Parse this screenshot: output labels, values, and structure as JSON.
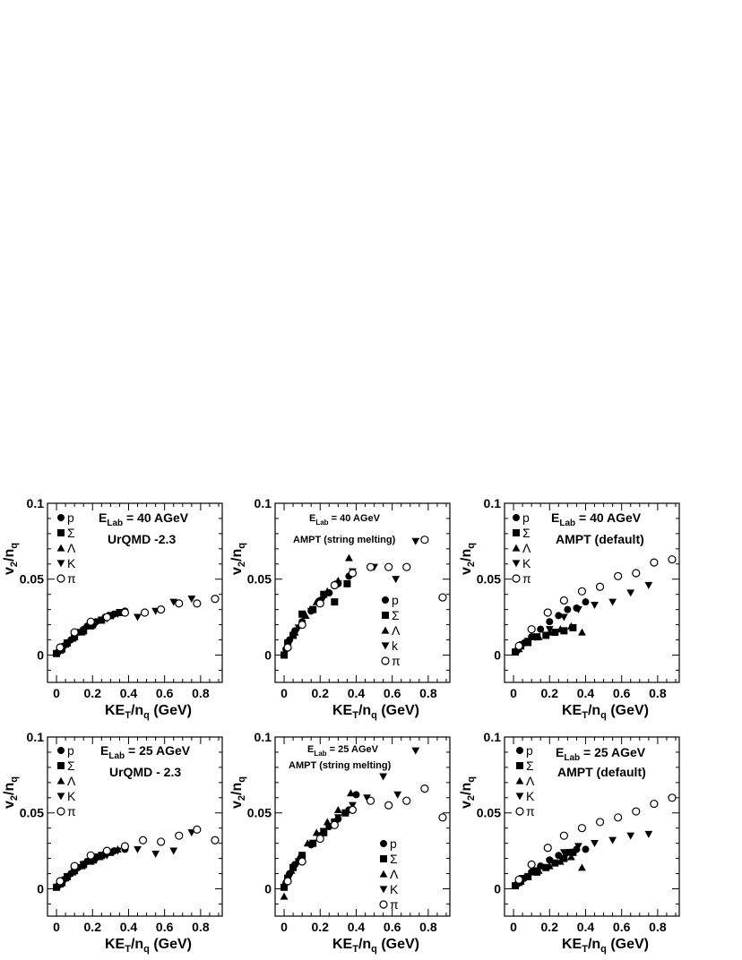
{
  "chart_data": [
    {
      "type": "scatter",
      "model": "UrQMD -2.3",
      "energy_label": "E",
      "energy_sub": "Lab",
      "energy_value": " = 40 AGeV",
      "xlabel": "KE_T/n_q (GeV)",
      "ylabel": "v_2/n_q",
      "xlim": [
        -0.05,
        0.92
      ],
      "ylim": [
        -0.018,
        0.1
      ],
      "xticks": [
        "0",
        "0.2",
        "0.4",
        "0.6",
        "0.8"
      ],
      "yticks": [
        "0",
        "0.05",
        "0.1"
      ],
      "legend": [
        "p",
        "Σ",
        "Λ",
        "K",
        "π"
      ],
      "series": [
        {
          "name": "p",
          "marker": "circle",
          "x": [
            0.01,
            0.04,
            0.08,
            0.12,
            0.17,
            0.22,
            0.27,
            0.32,
            0.38
          ],
          "y": [
            0.002,
            0.006,
            0.01,
            0.015,
            0.019,
            0.022,
            0.025,
            0.027,
            0.029
          ]
        },
        {
          "name": "Σ",
          "marker": "square",
          "x": [
            0.0,
            0.03,
            0.06,
            0.1,
            0.15,
            0.2,
            0.25,
            0.3,
            0.35
          ],
          "y": [
            0.001,
            0.004,
            0.008,
            0.012,
            0.016,
            0.02,
            0.023,
            0.026,
            0.028
          ]
        },
        {
          "name": "Λ",
          "marker": "triangle-up",
          "x": [
            0.02,
            0.05,
            0.09,
            0.14,
            0.19,
            0.24,
            0.29,
            0.34
          ],
          "y": [
            0.003,
            0.007,
            0.011,
            0.015,
            0.019,
            0.023,
            0.026,
            0.028
          ]
        },
        {
          "name": "K",
          "marker": "triangle-down",
          "x": [
            0.02,
            0.06,
            0.1,
            0.16,
            0.22,
            0.28,
            0.34,
            0.45,
            0.55,
            0.65,
            0.75
          ],
          "y": [
            0.003,
            0.008,
            0.012,
            0.017,
            0.021,
            0.024,
            0.027,
            0.025,
            0.029,
            0.035,
            0.037
          ]
        },
        {
          "name": "π",
          "marker": "circle-open",
          "x": [
            0.02,
            0.1,
            0.19,
            0.28,
            0.38,
            0.49,
            0.58,
            0.68,
            0.78,
            0.88
          ],
          "y": [
            0.005,
            0.015,
            0.022,
            0.025,
            0.028,
            0.028,
            0.03,
            0.034,
            0.034,
            0.037
          ]
        }
      ]
    },
    {
      "type": "scatter",
      "model": "AMPT (string melting)",
      "energy_label": "E",
      "energy_sub": "Lab",
      "energy_value": " = 40 AGeV",
      "xlabel": "KE_T/n_q (GeV)",
      "ylabel": "v_2/n_q",
      "xlim": [
        -0.05,
        0.92
      ],
      "ylim": [
        -0.018,
        0.1
      ],
      "xticks": [
        "0",
        "0.2",
        "0.4",
        "0.6",
        "0.8"
      ],
      "yticks": [
        "0",
        "0.05",
        "0.1"
      ],
      "legend": [
        "p",
        "Σ",
        "Λ",
        "k",
        "π"
      ],
      "series": [
        {
          "name": "p",
          "marker": "circle",
          "x": [
            0.01,
            0.03,
            0.06,
            0.1,
            0.15,
            0.2,
            0.25,
            0.3,
            0.36
          ],
          "y": [
            0.004,
            0.01,
            0.016,
            0.022,
            0.029,
            0.036,
            0.041,
            0.047,
            0.052
          ]
        },
        {
          "name": "Σ",
          "marker": "square",
          "x": [
            0.0,
            0.02,
            0.05,
            0.1,
            0.16,
            0.22,
            0.28,
            0.35
          ],
          "y": [
            0.0,
            0.008,
            0.013,
            0.027,
            0.03,
            0.04,
            0.035,
            0.047
          ]
        },
        {
          "name": "Λ",
          "marker": "triangle-up",
          "x": [
            0.02,
            0.06,
            0.12,
            0.18,
            0.24,
            0.3,
            0.36
          ],
          "y": [
            0.006,
            0.015,
            0.026,
            0.035,
            0.042,
            0.049,
            0.064
          ]
        },
        {
          "name": "k",
          "marker": "triangle-down",
          "x": [
            0.03,
            0.08,
            0.15,
            0.22,
            0.3,
            0.38,
            0.5,
            0.62,
            0.73
          ],
          "y": [
            0.008,
            0.018,
            0.029,
            0.038,
            0.047,
            0.055,
            0.058,
            0.05,
            0.075
          ]
        },
        {
          "name": "π",
          "marker": "circle-open",
          "x": [
            0.02,
            0.1,
            0.2,
            0.28,
            0.38,
            0.48,
            0.58,
            0.68,
            0.78,
            0.88
          ],
          "y": [
            0.005,
            0.02,
            0.034,
            0.046,
            0.054,
            0.058,
            0.058,
            0.058,
            0.076,
            0.038
          ]
        }
      ]
    },
    {
      "type": "scatter",
      "model": "AMPT (default)",
      "energy_label": "E",
      "energy_sub": "Lab",
      "energy_value": " = 40 AGeV",
      "xlabel": "KE_T/n_q (GeV)",
      "ylabel": "v_2/n_q",
      "xlim": [
        -0.05,
        0.92
      ],
      "ylim": [
        -0.018,
        0.1
      ],
      "xticks": [
        "0",
        "0.2",
        "0.4",
        "0.6",
        "0.8"
      ],
      "yticks": [
        "0",
        "0.05",
        "0.1"
      ],
      "legend": [
        "p",
        "Σ",
        "Λ",
        "K",
        "π"
      ],
      "series": [
        {
          "name": "p",
          "marker": "circle",
          "x": [
            0.02,
            0.06,
            0.1,
            0.15,
            0.2,
            0.25,
            0.3,
            0.35,
            0.4
          ],
          "y": [
            0.003,
            0.008,
            0.012,
            0.017,
            0.022,
            0.026,
            0.03,
            0.031,
            0.035
          ]
        },
        {
          "name": "Σ",
          "marker": "square",
          "x": [
            0.01,
            0.04,
            0.08,
            0.13,
            0.18,
            0.23,
            0.28,
            0.33
          ],
          "y": [
            0.002,
            0.006,
            0.009,
            0.012,
            0.013,
            0.015,
            0.016,
            0.018
          ]
        },
        {
          "name": "Λ",
          "marker": "triangle-up",
          "x": [
            0.03,
            0.08,
            0.14,
            0.2,
            0.26,
            0.32,
            0.38
          ],
          "y": [
            0.004,
            0.008,
            0.012,
            0.015,
            0.017,
            0.019,
            0.015
          ]
        },
        {
          "name": "K",
          "marker": "triangle-down",
          "x": [
            0.05,
            0.12,
            0.2,
            0.28,
            0.36,
            0.45,
            0.55,
            0.65,
            0.75
          ],
          "y": [
            0.007,
            0.012,
            0.017,
            0.025,
            0.03,
            0.033,
            0.035,
            0.041,
            0.046
          ]
        },
        {
          "name": "π",
          "marker": "circle-open",
          "x": [
            0.03,
            0.1,
            0.19,
            0.28,
            0.38,
            0.48,
            0.58,
            0.68,
            0.78,
            0.88
          ],
          "y": [
            0.006,
            0.017,
            0.028,
            0.036,
            0.042,
            0.045,
            0.052,
            0.054,
            0.061,
            0.063
          ]
        }
      ]
    },
    {
      "type": "scatter",
      "model": "UrQMD - 2.3",
      "energy_label": "E",
      "energy_sub": "Lab",
      "energy_value": " = 25 AGeV",
      "xlabel": "KE_T/n_q (GeV)",
      "ylabel": "v_2/n_q",
      "xlim": [
        -0.05,
        0.92
      ],
      "ylim": [
        -0.018,
        0.1
      ],
      "xticks": [
        "0",
        "0.2",
        "0.4",
        "0.6",
        "0.8"
      ],
      "yticks": [
        "0",
        "0.05",
        "0.1"
      ],
      "legend": [
        "p",
        "Σ",
        "Λ",
        "K",
        "π"
      ],
      "series": [
        {
          "name": "p",
          "marker": "circle",
          "x": [
            0.01,
            0.04,
            0.08,
            0.12,
            0.17,
            0.22,
            0.27,
            0.32,
            0.38
          ],
          "y": [
            0.002,
            0.006,
            0.01,
            0.014,
            0.018,
            0.021,
            0.023,
            0.025,
            0.026
          ]
        },
        {
          "name": "Σ",
          "marker": "square",
          "x": [
            0.0,
            0.03,
            0.06,
            0.1,
            0.15,
            0.2,
            0.25,
            0.3
          ],
          "y": [
            0.001,
            0.004,
            0.008,
            0.012,
            0.016,
            0.019,
            0.022,
            0.024
          ]
        },
        {
          "name": "Λ",
          "marker": "triangle-up",
          "x": [
            0.02,
            0.05,
            0.09,
            0.14,
            0.19,
            0.24,
            0.29,
            0.34
          ],
          "y": [
            0.003,
            0.007,
            0.011,
            0.015,
            0.018,
            0.021,
            0.024,
            0.026
          ]
        },
        {
          "name": "K",
          "marker": "triangle-down",
          "x": [
            0.02,
            0.06,
            0.1,
            0.16,
            0.22,
            0.28,
            0.34,
            0.45,
            0.55,
            0.65,
            0.75
          ],
          "y": [
            0.003,
            0.008,
            0.012,
            0.016,
            0.019,
            0.022,
            0.025,
            0.026,
            0.023,
            0.025,
            0.037
          ]
        },
        {
          "name": "π",
          "marker": "circle-open",
          "x": [
            0.02,
            0.1,
            0.19,
            0.28,
            0.38,
            0.48,
            0.58,
            0.68,
            0.78,
            0.88
          ],
          "y": [
            0.005,
            0.015,
            0.022,
            0.025,
            0.028,
            0.032,
            0.031,
            0.035,
            0.039,
            0.032
          ]
        }
      ]
    },
    {
      "type": "scatter",
      "model": "AMPT (string melting)",
      "energy_label": "E",
      "energy_sub": "Lab",
      "energy_value": " = 25 AGeV",
      "xlabel": "KE_T/n_q (GeV)",
      "ylabel": "v_2/n_q",
      "xlim": [
        -0.05,
        0.92
      ],
      "ylim": [
        -0.018,
        0.1
      ],
      "xticks": [
        "0",
        "0.2",
        "0.4",
        "0.6",
        "0.8"
      ],
      "yticks": [
        "0",
        "0.05",
        "0.1"
      ],
      "legend": [
        "p",
        "Σ",
        "Λ",
        "K",
        "π"
      ],
      "series": [
        {
          "name": "p",
          "marker": "circle",
          "x": [
            0.01,
            0.03,
            0.06,
            0.1,
            0.15,
            0.2,
            0.25,
            0.3,
            0.36,
            0.4
          ],
          "y": [
            0.004,
            0.01,
            0.016,
            0.022,
            0.029,
            0.035,
            0.041,
            0.046,
            0.052,
            0.062
          ]
        },
        {
          "name": "Σ",
          "marker": "square",
          "x": [
            0.0,
            0.02,
            0.05,
            0.1,
            0.16,
            0.22,
            0.28,
            0.34
          ],
          "y": [
            0.001,
            0.007,
            0.014,
            0.022,
            0.03,
            0.037,
            0.044,
            0.05
          ]
        },
        {
          "name": "Λ",
          "marker": "triangle-up",
          "x": [
            0.0,
            0.04,
            0.08,
            0.13,
            0.18,
            0.24,
            0.3,
            0.37
          ],
          "y": [
            -0.005,
            0.012,
            0.02,
            0.03,
            0.037,
            0.044,
            0.052,
            0.063
          ]
        },
        {
          "name": "K",
          "marker": "triangle-down",
          "x": [
            0.03,
            0.08,
            0.15,
            0.22,
            0.3,
            0.38,
            0.46,
            0.55,
            0.63,
            0.73
          ],
          "y": [
            0.008,
            0.018,
            0.029,
            0.038,
            0.047,
            0.055,
            0.06,
            0.074,
            0.062,
            0.091
          ]
        },
        {
          "name": "π",
          "marker": "circle-open",
          "x": [
            0.02,
            0.1,
            0.2,
            0.28,
            0.38,
            0.48,
            0.58,
            0.68,
            0.78,
            0.88
          ],
          "y": [
            0.005,
            0.018,
            0.033,
            0.042,
            0.052,
            0.058,
            0.055,
            0.058,
            0.066,
            0.047
          ]
        }
      ]
    },
    {
      "type": "scatter",
      "model": "AMPT (default)",
      "energy_label": "E",
      "energy_sub": "Lab",
      "energy_value": " = 25 AGeV",
      "xlabel": "KE_T/n_q (GeV)",
      "ylabel": "v_2/n_q",
      "xlim": [
        -0.05,
        0.92
      ],
      "ylim": [
        -0.018,
        0.1
      ],
      "xticks": [
        "0",
        "0.2",
        "0.4",
        "0.6",
        "0.8"
      ],
      "yticks": [
        "0",
        "0.05",
        "0.1"
      ],
      "legend": [
        "p",
        "Σ",
        "Λ",
        "K",
        "π"
      ],
      "series": [
        {
          "name": "p",
          "marker": "circle",
          "x": [
            0.02,
            0.06,
            0.1,
            0.15,
            0.2,
            0.25,
            0.3,
            0.35,
            0.4
          ],
          "y": [
            0.003,
            0.007,
            0.011,
            0.015,
            0.019,
            0.022,
            0.024,
            0.026,
            0.026
          ]
        },
        {
          "name": "Σ",
          "marker": "square",
          "x": [
            0.01,
            0.04,
            0.08,
            0.13,
            0.18,
            0.23,
            0.28,
            0.33
          ],
          "y": [
            0.002,
            0.005,
            0.008,
            0.011,
            0.014,
            0.017,
            0.02,
            0.024
          ]
        },
        {
          "name": "Λ",
          "marker": "triangle-up",
          "x": [
            0.03,
            0.08,
            0.14,
            0.2,
            0.26,
            0.32,
            0.38
          ],
          "y": [
            0.004,
            0.008,
            0.012,
            0.015,
            0.018,
            0.021,
            0.014
          ]
        },
        {
          "name": "K",
          "marker": "triangle-down",
          "x": [
            0.05,
            0.12,
            0.2,
            0.28,
            0.36,
            0.45,
            0.55,
            0.65,
            0.75
          ],
          "y": [
            0.007,
            0.012,
            0.018,
            0.024,
            0.028,
            0.03,
            0.032,
            0.035,
            0.036
          ]
        },
        {
          "name": "π",
          "marker": "circle-open",
          "x": [
            0.03,
            0.1,
            0.19,
            0.28,
            0.38,
            0.48,
            0.58,
            0.68,
            0.78,
            0.88
          ],
          "y": [
            0.006,
            0.016,
            0.027,
            0.035,
            0.04,
            0.044,
            0.047,
            0.051,
            0.056,
            0.06
          ]
        }
      ]
    }
  ]
}
